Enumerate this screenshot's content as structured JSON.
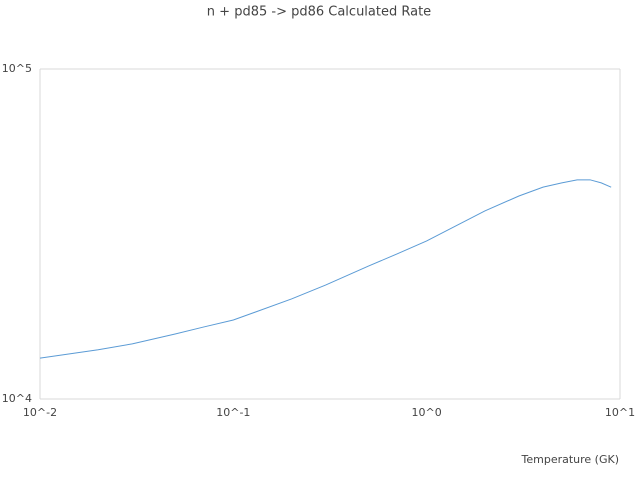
{
  "chart_data": {
    "type": "line",
    "title": "n + pd85 -> pd86 Calculated Rate",
    "x_label": "Temperature (GK)",
    "x": [
      0.01,
      0.02,
      0.03,
      0.05,
      0.07,
      0.1,
      0.2,
      0.3,
      0.5,
      0.7,
      1,
      2,
      3,
      4,
      5,
      6,
      7,
      8,
      9
    ],
    "series": [
      {
        "name": "n + pd85 -> pd86",
        "color": "#5b9bd5",
        "values": [
          13300,
          14100,
          14690,
          15740,
          16520,
          17350,
          20100,
          22150,
          25280,
          27490,
          30130,
          37150,
          41220,
          43850,
          45170,
          46150,
          46150,
          45170,
          43850
        ]
      }
    ],
    "xlim": [
      0.01,
      10
    ],
    "ylim": [
      10000,
      100000
    ],
    "xticks": [
      {
        "value": 0.01,
        "label": "10^-2"
      },
      {
        "value": 0.1,
        "label": "10^-1"
      },
      {
        "value": 1,
        "label": "10^0"
      },
      {
        "value": 10,
        "label": "10^1"
      }
    ],
    "yticks": [
      {
        "value": 10000,
        "label": "10^4"
      },
      {
        "value": 100000,
        "label": "10^5"
      }
    ],
    "x_log": true,
    "y_log": true,
    "grid": true
  }
}
